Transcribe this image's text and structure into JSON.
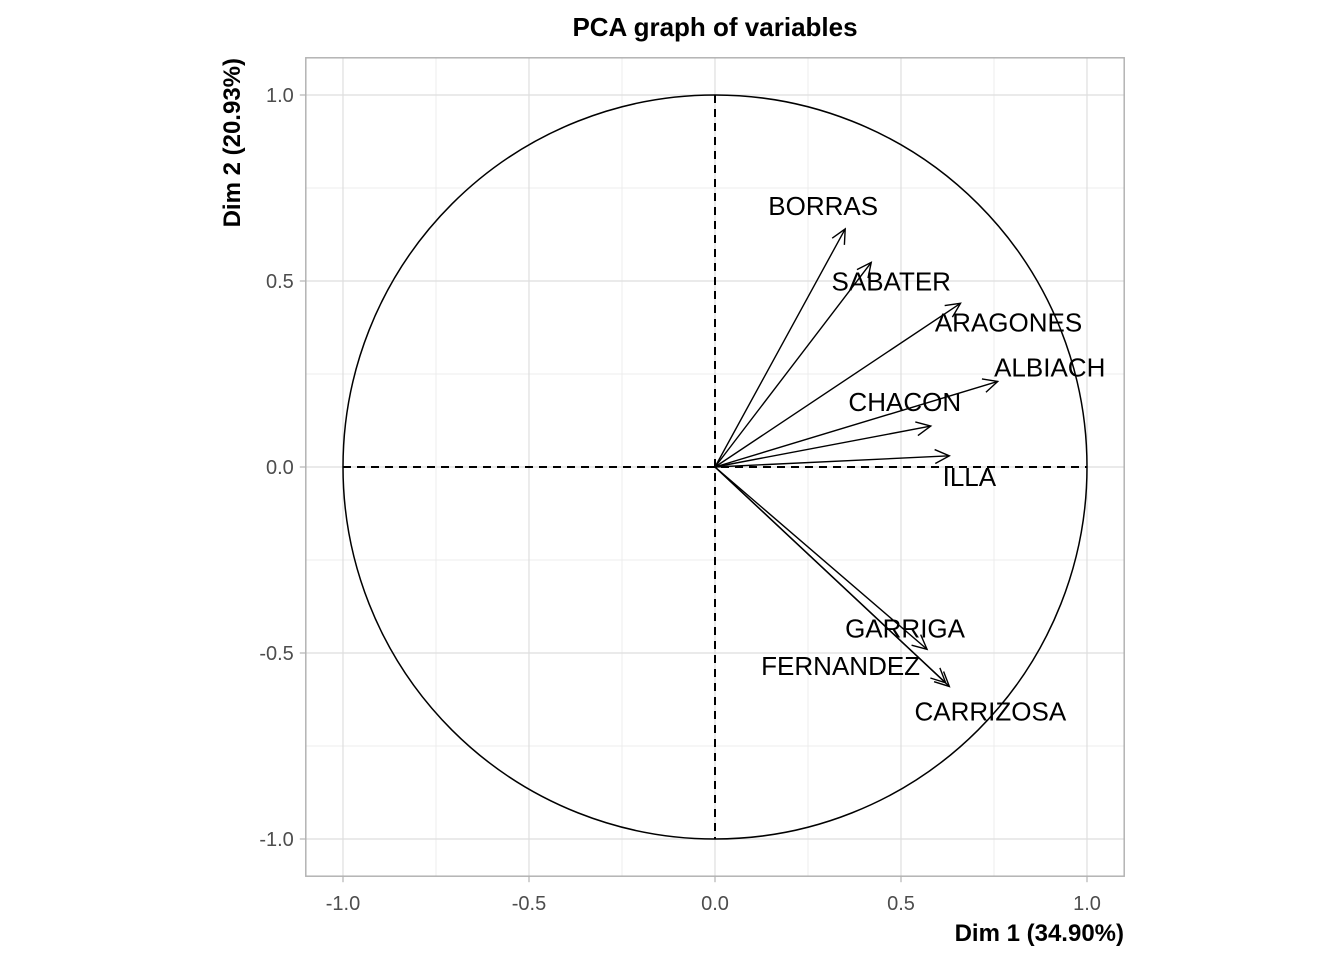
{
  "chart_data": {
    "type": "scatter",
    "subtype": "pca-variable-correlation-circle",
    "title": "PCA graph of variables",
    "xlabel": "Dim 1 (34.90%)",
    "ylabel": "Dim 2 (20.93%)",
    "xlim": [
      -1.1,
      1.1
    ],
    "ylim": [
      -1.1,
      1.1
    ],
    "xticks": [
      -1.0,
      -0.5,
      0.0,
      0.5,
      1.0
    ],
    "yticks": [
      -1.0,
      -0.5,
      0.0,
      0.5,
      1.0
    ],
    "xtick_labels": [
      "-1.0",
      "-0.5",
      "0.0",
      "0.5",
      "1.0"
    ],
    "ytick_labels": [
      "-1.0",
      "-0.5",
      "0.0",
      "0.5",
      "1.0"
    ],
    "grid": true,
    "unit_circle": true,
    "variables": [
      {
        "name": "BORRAS",
        "x": 0.35,
        "y": 0.64
      },
      {
        "name": "SABATER",
        "x": 0.42,
        "y": 0.55
      },
      {
        "name": "ARAGONES",
        "x": 0.66,
        "y": 0.44
      },
      {
        "name": "ALBIACH",
        "x": 0.76,
        "y": 0.23
      },
      {
        "name": "CHACON",
        "x": 0.58,
        "y": 0.11
      },
      {
        "name": "ILLA",
        "x": 0.63,
        "y": 0.03
      },
      {
        "name": "GARRIGA",
        "x": 0.57,
        "y": -0.49
      },
      {
        "name": "FERNANDEZ",
        "x": 0.62,
        "y": -0.58
      },
      {
        "name": "CARRIZOSA",
        "x": 0.63,
        "y": -0.59
      }
    ]
  }
}
